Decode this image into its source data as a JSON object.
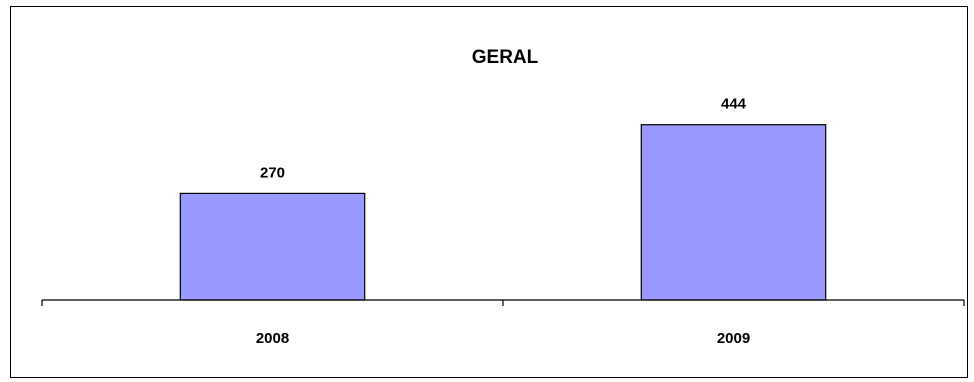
{
  "chart_data": {
    "type": "bar",
    "title": "GERAL",
    "categories": [
      "2008",
      "2009"
    ],
    "values": [
      270,
      444
    ],
    "xlabel": "",
    "ylabel": "",
    "ylim": [
      0,
      760
    ],
    "grid": false,
    "legend": "none",
    "colors": {
      "bar_fill": "#9999ff",
      "bar_stroke": "#000000",
      "axis": "#000000",
      "frame": "#000000"
    }
  }
}
